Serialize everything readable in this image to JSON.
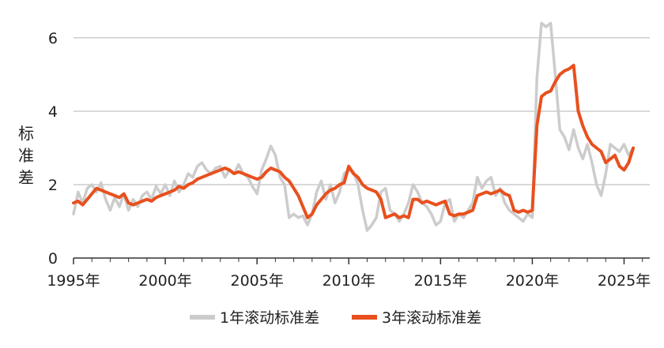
{
  "chart_data": {
    "type": "line",
    "ylabel": "标准差",
    "ylim": [
      0,
      6.6
    ],
    "y_ticks": [
      "0",
      "2",
      "4",
      "6"
    ],
    "x_ticks": [
      "1995年",
      "2000年",
      "2005年",
      "2010年",
      "2015年",
      "2020年",
      "2025年"
    ],
    "grid": "horizontal",
    "legend_position": "bottom",
    "series": [
      {
        "name": "1年滚动标准差",
        "color": "#cccccc",
        "points": [
          [
            1995.0,
            1.2
          ],
          [
            1995.25,
            1.8
          ],
          [
            1995.5,
            1.5
          ],
          [
            1995.75,
            1.9
          ],
          [
            1996.0,
            2.0
          ],
          [
            1996.25,
            1.8
          ],
          [
            1996.5,
            2.05
          ],
          [
            1996.75,
            1.6
          ],
          [
            1997.0,
            1.3
          ],
          [
            1997.25,
            1.65
          ],
          [
            1997.5,
            1.4
          ],
          [
            1997.75,
            1.75
          ],
          [
            1998.0,
            1.3
          ],
          [
            1998.25,
            1.6
          ],
          [
            1998.5,
            1.4
          ],
          [
            1998.75,
            1.7
          ],
          [
            1999.0,
            1.8
          ],
          [
            1999.25,
            1.6
          ],
          [
            1999.5,
            1.95
          ],
          [
            1999.75,
            1.75
          ],
          [
            2000.0,
            2.0
          ],
          [
            2000.25,
            1.7
          ],
          [
            2000.5,
            2.1
          ],
          [
            2000.75,
            1.8
          ],
          [
            2001.0,
            2.0
          ],
          [
            2001.25,
            2.3
          ],
          [
            2001.5,
            2.2
          ],
          [
            2001.75,
            2.5
          ],
          [
            2002.0,
            2.6
          ],
          [
            2002.25,
            2.4
          ],
          [
            2002.5,
            2.3
          ],
          [
            2002.75,
            2.45
          ],
          [
            2003.0,
            2.5
          ],
          [
            2003.25,
            2.2
          ],
          [
            2003.5,
            2.4
          ],
          [
            2003.75,
            2.3
          ],
          [
            2004.0,
            2.55
          ],
          [
            2004.25,
            2.3
          ],
          [
            2004.5,
            2.2
          ],
          [
            2004.75,
            1.95
          ],
          [
            2005.0,
            1.75
          ],
          [
            2005.25,
            2.4
          ],
          [
            2005.5,
            2.7
          ],
          [
            2005.75,
            3.05
          ],
          [
            2006.0,
            2.8
          ],
          [
            2006.25,
            2.2
          ],
          [
            2006.5,
            2.0
          ],
          [
            2006.75,
            1.1
          ],
          [
            2007.0,
            1.2
          ],
          [
            2007.25,
            1.1
          ],
          [
            2007.5,
            1.15
          ],
          [
            2007.75,
            0.9
          ],
          [
            2008.0,
            1.2
          ],
          [
            2008.25,
            1.8
          ],
          [
            2008.5,
            2.1
          ],
          [
            2008.75,
            1.6
          ],
          [
            2009.0,
            2.0
          ],
          [
            2009.25,
            1.5
          ],
          [
            2009.5,
            1.8
          ],
          [
            2009.75,
            2.3
          ],
          [
            2010.0,
            2.4
          ],
          [
            2010.25,
            2.35
          ],
          [
            2010.5,
            2.0
          ],
          [
            2010.75,
            1.3
          ],
          [
            2011.0,
            0.75
          ],
          [
            2011.25,
            0.9
          ],
          [
            2011.5,
            1.1
          ],
          [
            2011.75,
            1.8
          ],
          [
            2012.0,
            1.9
          ],
          [
            2012.25,
            1.3
          ],
          [
            2012.5,
            1.2
          ],
          [
            2012.75,
            1.0
          ],
          [
            2013.0,
            1.2
          ],
          [
            2013.25,
            1.5
          ],
          [
            2013.5,
            2.0
          ],
          [
            2013.75,
            1.8
          ],
          [
            2014.0,
            1.5
          ],
          [
            2014.25,
            1.4
          ],
          [
            2014.5,
            1.2
          ],
          [
            2014.75,
            0.9
          ],
          [
            2015.0,
            1.0
          ],
          [
            2015.25,
            1.5
          ],
          [
            2015.5,
            1.6
          ],
          [
            2015.75,
            1.0
          ],
          [
            2016.0,
            1.2
          ],
          [
            2016.25,
            1.1
          ],
          [
            2016.5,
            1.3
          ],
          [
            2016.75,
            1.5
          ],
          [
            2017.0,
            2.2
          ],
          [
            2017.25,
            1.9
          ],
          [
            2017.5,
            2.1
          ],
          [
            2017.75,
            2.2
          ],
          [
            2018.0,
            1.7
          ],
          [
            2018.25,
            1.9
          ],
          [
            2018.5,
            1.5
          ],
          [
            2018.75,
            1.3
          ],
          [
            2019.0,
            1.2
          ],
          [
            2019.25,
            1.1
          ],
          [
            2019.5,
            1.0
          ],
          [
            2019.75,
            1.2
          ],
          [
            2020.0,
            1.1
          ],
          [
            2020.25,
            4.9
          ],
          [
            2020.5,
            6.4
          ],
          [
            2020.75,
            6.3
          ],
          [
            2021.0,
            6.4
          ],
          [
            2021.25,
            5.0
          ],
          [
            2021.5,
            3.5
          ],
          [
            2021.75,
            3.3
          ],
          [
            2022.0,
            2.95
          ],
          [
            2022.25,
            3.5
          ],
          [
            2022.5,
            3.0
          ],
          [
            2022.75,
            2.7
          ],
          [
            2023.0,
            3.1
          ],
          [
            2023.25,
            2.6
          ],
          [
            2023.5,
            2.0
          ],
          [
            2023.75,
            1.7
          ],
          [
            2024.0,
            2.3
          ],
          [
            2024.25,
            3.1
          ],
          [
            2024.5,
            3.0
          ],
          [
            2024.75,
            2.9
          ],
          [
            2025.0,
            3.1
          ],
          [
            2025.25,
            2.8
          ],
          [
            2025.5,
            3.0
          ]
        ]
      },
      {
        "name": "3年滚动标准差",
        "color": "#e8501e",
        "points": [
          [
            1995.0,
            1.5
          ],
          [
            1995.25,
            1.55
          ],
          [
            1995.5,
            1.45
          ],
          [
            1995.75,
            1.6
          ],
          [
            1996.0,
            1.75
          ],
          [
            1996.25,
            1.9
          ],
          [
            1996.5,
            1.85
          ],
          [
            1996.75,
            1.8
          ],
          [
            1997.0,
            1.75
          ],
          [
            1997.25,
            1.7
          ],
          [
            1997.5,
            1.65
          ],
          [
            1997.75,
            1.75
          ],
          [
            1998.0,
            1.5
          ],
          [
            1998.25,
            1.45
          ],
          [
            1998.5,
            1.5
          ],
          [
            1998.75,
            1.55
          ],
          [
            1999.0,
            1.6
          ],
          [
            1999.25,
            1.55
          ],
          [
            1999.5,
            1.65
          ],
          [
            1999.75,
            1.7
          ],
          [
            2000.0,
            1.75
          ],
          [
            2000.25,
            1.8
          ],
          [
            2000.5,
            1.85
          ],
          [
            2000.75,
            1.95
          ],
          [
            2001.0,
            1.9
          ],
          [
            2001.25,
            2.0
          ],
          [
            2001.5,
            2.05
          ],
          [
            2001.75,
            2.15
          ],
          [
            2002.0,
            2.2
          ],
          [
            2002.25,
            2.25
          ],
          [
            2002.5,
            2.3
          ],
          [
            2002.75,
            2.35
          ],
          [
            2003.0,
            2.4
          ],
          [
            2003.25,
            2.45
          ],
          [
            2003.5,
            2.4
          ],
          [
            2003.75,
            2.3
          ],
          [
            2004.0,
            2.35
          ],
          [
            2004.25,
            2.3
          ],
          [
            2004.5,
            2.25
          ],
          [
            2004.75,
            2.2
          ],
          [
            2005.0,
            2.15
          ],
          [
            2005.25,
            2.2
          ],
          [
            2005.5,
            2.35
          ],
          [
            2005.75,
            2.45
          ],
          [
            2006.0,
            2.4
          ],
          [
            2006.25,
            2.35
          ],
          [
            2006.5,
            2.2
          ],
          [
            2006.75,
            2.1
          ],
          [
            2007.0,
            1.9
          ],
          [
            2007.25,
            1.7
          ],
          [
            2007.5,
            1.4
          ],
          [
            2007.75,
            1.1
          ],
          [
            2008.0,
            1.2
          ],
          [
            2008.25,
            1.45
          ],
          [
            2008.5,
            1.6
          ],
          [
            2008.75,
            1.75
          ],
          [
            2009.0,
            1.85
          ],
          [
            2009.25,
            1.9
          ],
          [
            2009.5,
            2.0
          ],
          [
            2009.75,
            2.05
          ],
          [
            2010.0,
            2.5
          ],
          [
            2010.25,
            2.3
          ],
          [
            2010.5,
            2.2
          ],
          [
            2010.75,
            2.0
          ],
          [
            2011.0,
            1.9
          ],
          [
            2011.25,
            1.85
          ],
          [
            2011.5,
            1.8
          ],
          [
            2011.75,
            1.6
          ],
          [
            2012.0,
            1.1
          ],
          [
            2012.25,
            1.15
          ],
          [
            2012.5,
            1.2
          ],
          [
            2012.75,
            1.1
          ],
          [
            2013.0,
            1.15
          ],
          [
            2013.25,
            1.1
          ],
          [
            2013.5,
            1.6
          ],
          [
            2013.75,
            1.6
          ],
          [
            2014.0,
            1.5
          ],
          [
            2014.25,
            1.55
          ],
          [
            2014.5,
            1.5
          ],
          [
            2014.75,
            1.45
          ],
          [
            2015.0,
            1.5
          ],
          [
            2015.25,
            1.55
          ],
          [
            2015.5,
            1.2
          ],
          [
            2015.75,
            1.15
          ],
          [
            2016.0,
            1.2
          ],
          [
            2016.25,
            1.2
          ],
          [
            2016.5,
            1.25
          ],
          [
            2016.75,
            1.3
          ],
          [
            2017.0,
            1.7
          ],
          [
            2017.25,
            1.75
          ],
          [
            2017.5,
            1.8
          ],
          [
            2017.75,
            1.75
          ],
          [
            2018.0,
            1.8
          ],
          [
            2018.25,
            1.85
          ],
          [
            2018.5,
            1.75
          ],
          [
            2018.75,
            1.7
          ],
          [
            2019.0,
            1.3
          ],
          [
            2019.25,
            1.25
          ],
          [
            2019.5,
            1.3
          ],
          [
            2019.75,
            1.25
          ],
          [
            2020.0,
            1.3
          ],
          [
            2020.25,
            3.6
          ],
          [
            2020.5,
            4.4
          ],
          [
            2020.75,
            4.5
          ],
          [
            2021.0,
            4.55
          ],
          [
            2021.25,
            4.8
          ],
          [
            2021.5,
            5.0
          ],
          [
            2021.75,
            5.1
          ],
          [
            2022.0,
            5.15
          ],
          [
            2022.25,
            5.25
          ],
          [
            2022.5,
            4.0
          ],
          [
            2022.75,
            3.6
          ],
          [
            2023.0,
            3.3
          ],
          [
            2023.25,
            3.1
          ],
          [
            2023.5,
            3.0
          ],
          [
            2023.75,
            2.9
          ],
          [
            2024.0,
            2.6
          ],
          [
            2024.25,
            2.7
          ],
          [
            2024.5,
            2.8
          ],
          [
            2024.75,
            2.5
          ],
          [
            2025.0,
            2.4
          ],
          [
            2025.25,
            2.6
          ],
          [
            2025.5,
            3.0
          ]
        ]
      }
    ]
  }
}
